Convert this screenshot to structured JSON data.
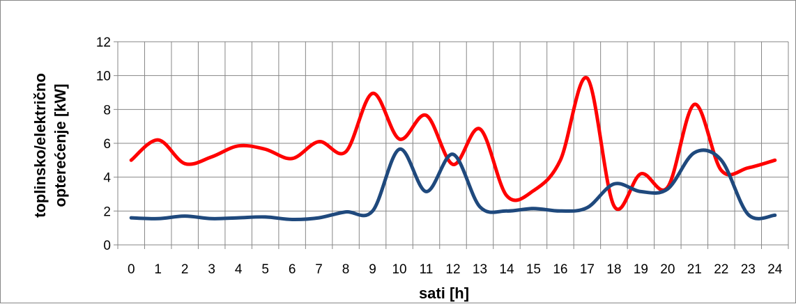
{
  "chart_data": {
    "type": "line",
    "xlabel": "sati [h]",
    "ylabel_line1": "toplinsko/električno",
    "ylabel_line2": "opterećenje [kW]",
    "x": [
      0,
      1,
      2,
      3,
      4,
      5,
      6,
      7,
      8,
      9,
      10,
      11,
      12,
      13,
      14,
      15,
      16,
      17,
      18,
      19,
      20,
      21,
      22,
      23,
      24
    ],
    "xlim": [
      -0.5,
      24.5
    ],
    "ylim": [
      0,
      12
    ],
    "yticks": [
      0,
      2,
      4,
      6,
      8,
      10,
      12
    ],
    "xtick_labels": [
      "0",
      "1",
      "2",
      "3",
      "4",
      "5",
      "6",
      "7",
      "8",
      "9",
      "10",
      "11",
      "12",
      "13",
      "14",
      "15",
      "16",
      "17",
      "18",
      "19",
      "20",
      "21",
      "22",
      "23",
      "24"
    ],
    "grid": true,
    "series": [
      {
        "color": "#ff0000",
        "values": [
          5.0,
          6.2,
          4.8,
          5.2,
          5.85,
          5.65,
          5.1,
          6.1,
          5.5,
          8.95,
          6.25,
          7.65,
          4.75,
          6.85,
          2.9,
          3.2,
          5.0,
          9.85,
          2.3,
          4.2,
          3.4,
          8.3,
          4.4,
          4.55,
          5.0
        ]
      },
      {
        "color": "#1f497d",
        "values": [
          1.6,
          1.55,
          1.7,
          1.55,
          1.6,
          1.65,
          1.5,
          1.6,
          1.95,
          2.0,
          5.65,
          3.15,
          5.35,
          2.25,
          2.0,
          2.15,
          2.0,
          2.2,
          3.6,
          3.15,
          3.3,
          5.45,
          5.0,
          1.8,
          1.75
        ]
      }
    ]
  }
}
